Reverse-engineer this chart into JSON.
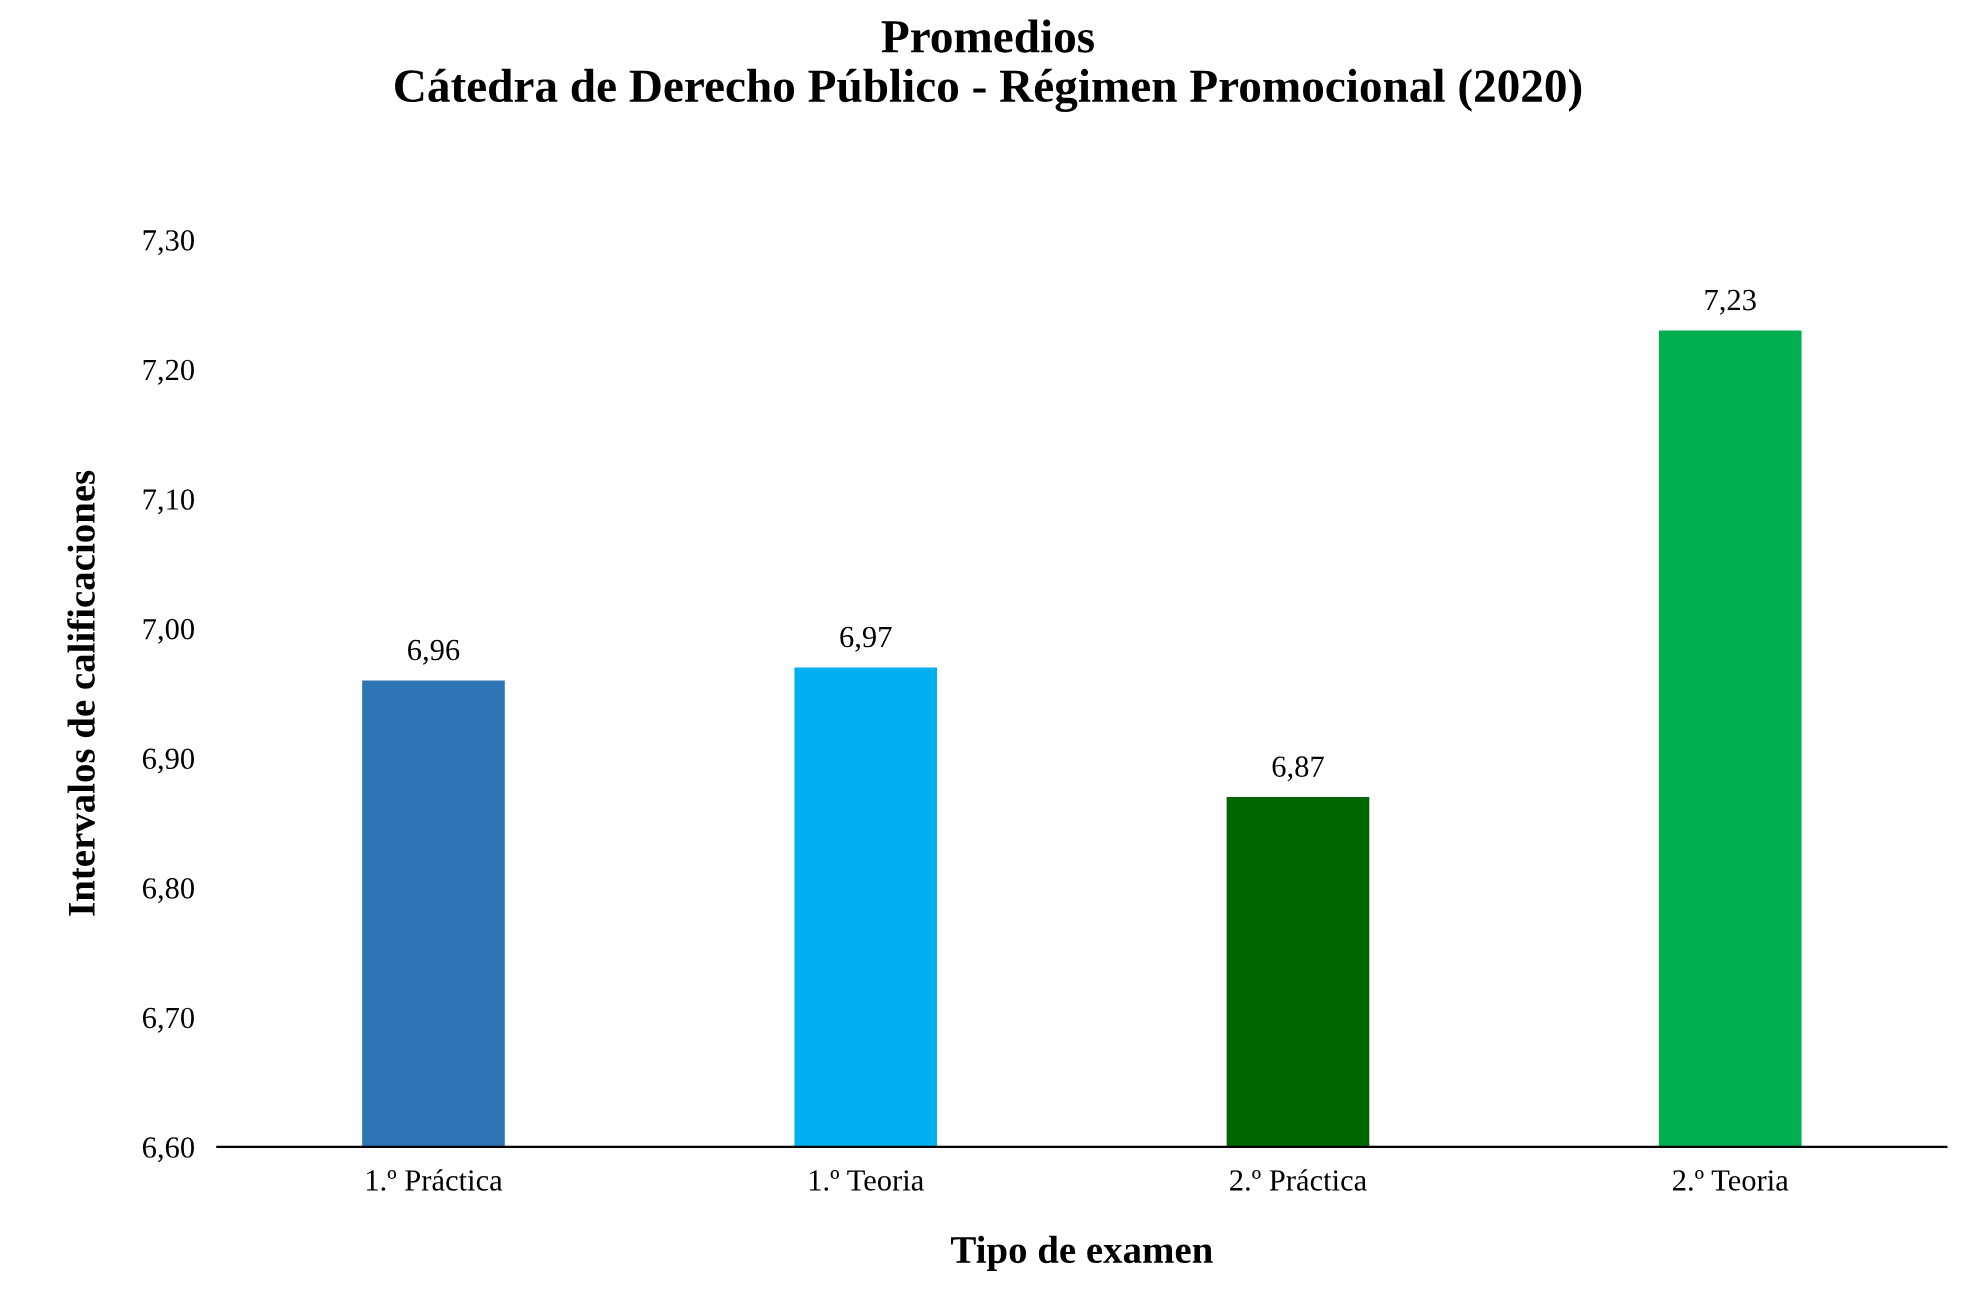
{
  "chart_data": {
    "type": "bar",
    "title": "Promedios\nCátedra de Derecho Público - Régimen Promocional (2020)",
    "xlabel": "Tipo de examen",
    "ylabel": "Intervalos de calificaciones",
    "categories": [
      "1.º Práctica",
      "1.º Teoria",
      "2.º Práctica",
      "2.º Teoria"
    ],
    "values": [
      6.96,
      6.97,
      6.87,
      7.23
    ],
    "value_labels": [
      "6,96",
      "6,97",
      "6,87",
      "7,23"
    ],
    "colors": [
      "#2e75b6",
      "#00b0f0",
      "#006600",
      "#00b050"
    ],
    "ylim": [
      6.6,
      7.3
    ],
    "yticks": [
      {
        "value": 6.6,
        "label": "6,60"
      },
      {
        "value": 6.7,
        "label": "6,70"
      },
      {
        "value": 6.8,
        "label": "6,80"
      },
      {
        "value": 6.9,
        "label": "6,90"
      },
      {
        "value": 7.0,
        "label": "7,00"
      },
      {
        "value": 7.1,
        "label": "7,10"
      },
      {
        "value": 7.2,
        "label": "7,20"
      },
      {
        "value": 7.3,
        "label": "7,30"
      }
    ],
    "grid": false,
    "legend": false
  }
}
